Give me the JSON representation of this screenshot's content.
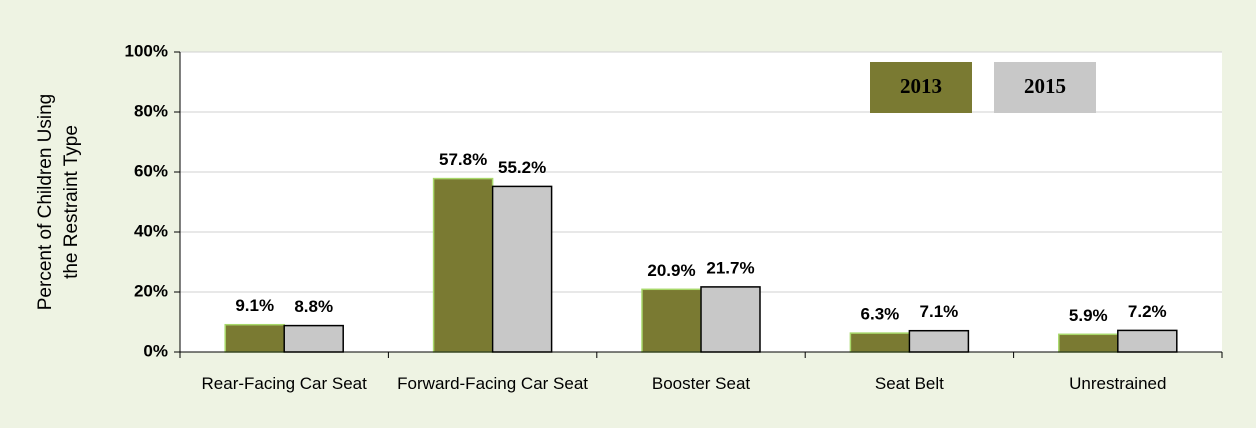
{
  "chart_data": {
    "type": "bar",
    "y_label": [
      "Percent of Children Using",
      "the Restraint Type"
    ],
    "categories": [
      "Rear-Facing Car Seat",
      "Forward-Facing Car Seat",
      "Booster Seat",
      "Seat Belt",
      "Unrestrained"
    ],
    "series": [
      {
        "name": "2013",
        "color": "#7a7a32",
        "values": [
          9.1,
          57.8,
          20.9,
          6.3,
          5.9
        ],
        "value_labels": [
          "9.1%",
          "57.8%",
          "20.9%",
          "6.3%",
          "5.9%"
        ]
      },
      {
        "name": "2015",
        "color": "#c8c8c8",
        "values": [
          8.8,
          55.2,
          21.7,
          7.1,
          7.2
        ],
        "value_labels": [
          "8.8%",
          "55.2%",
          "21.7%",
          "7.1%",
          "7.2%"
        ]
      }
    ],
    "ylim": [
      0,
      100
    ],
    "yticks": [
      {
        "value": 0,
        "label": "0%"
      },
      {
        "value": 20,
        "label": "20%"
      },
      {
        "value": 40,
        "label": "40%"
      },
      {
        "value": 60,
        "label": "60%"
      },
      {
        "value": 80,
        "label": "80%"
      },
      {
        "value": 100,
        "label": "100%"
      }
    ],
    "grid": true,
    "legend": "upper right"
  }
}
